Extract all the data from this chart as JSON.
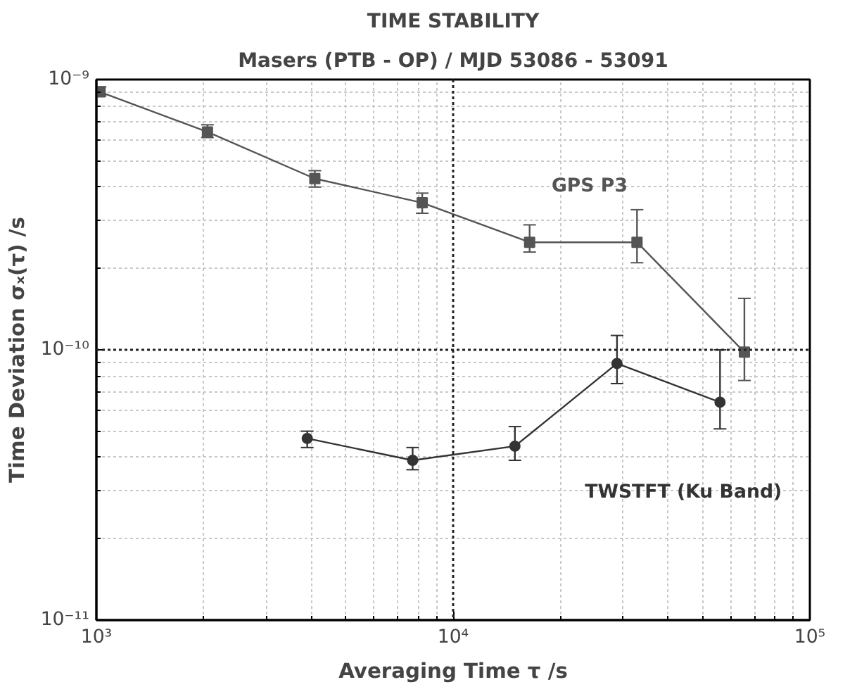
{
  "chart_data": {
    "type": "line",
    "title": "TIME STABILITY",
    "subtitle": "Masers (PTB - OP) / MJD 53086 - 53091",
    "xlabel": "Averaging Time τ /s",
    "ylabel": "Time Deviation σₓ(τ) /s",
    "log": "xy",
    "grid": true,
    "line_style": "solid",
    "xlim": [
      1000,
      100000
    ],
    "ylim": [
      1e-11,
      1e-09
    ],
    "xticks": [
      {
        "value": 1000,
        "label": "10³"
      },
      {
        "value": 10000,
        "label": "10⁴"
      },
      {
        "value": 100000,
        "label": "10⁵"
      }
    ],
    "yticks": [
      {
        "value": 1e-11,
        "label": "10⁻¹¹"
      },
      {
        "value": 1e-10,
        "label": "10⁻¹⁰"
      },
      {
        "value": 1e-09,
        "label": "10⁻⁹"
      }
    ],
    "ref_lines": [
      {
        "axis": "x",
        "value": 10000,
        "line_style": "dotted",
        "color": "#222222"
      },
      {
        "axis": "y",
        "value": 1e-10,
        "line_style": "dotted",
        "color": "#222222"
      }
    ],
    "series": [
      {
        "name": "GPS P3",
        "color": "#555555",
        "marker": "square",
        "x": [
          1024,
          2048,
          4096,
          8192,
          16384,
          32768,
          65536
        ],
        "values": [
          9e-10,
          6.4e-10,
          4.3e-10,
          3.5e-10,
          2.5e-10,
          2.5e-10,
          9.8e-11
        ],
        "errors": [
          [
            8.7e-10,
            9.4e-10
          ],
          [
            6.1e-10,
            6.8e-10
          ],
          [
            4e-10,
            4.6e-10
          ],
          [
            3.2e-10,
            3.8e-10
          ],
          [
            2.3e-10,
            2.9e-10
          ],
          [
            2.1e-10,
            3.3e-10
          ],
          [
            7.7e-11,
            1.55e-10
          ]
        ]
      },
      {
        "name": "TWSTFT (Ku Band)",
        "color": "#333333",
        "marker": "circle",
        "x": [
          3900,
          7700,
          14900,
          28800,
          56000
        ],
        "values": [
          4.7e-11,
          3.9e-11,
          4.4e-11,
          8.9e-11,
          6.4e-11
        ],
        "errors": [
          [
            4.35e-11,
            5e-11
          ],
          [
            3.6e-11,
            4.35e-11
          ],
          [
            3.9e-11,
            5.2e-11
          ],
          [
            7.5e-11,
            1.13e-10
          ],
          [
            5.1e-11,
            1e-10
          ]
        ]
      }
    ]
  }
}
